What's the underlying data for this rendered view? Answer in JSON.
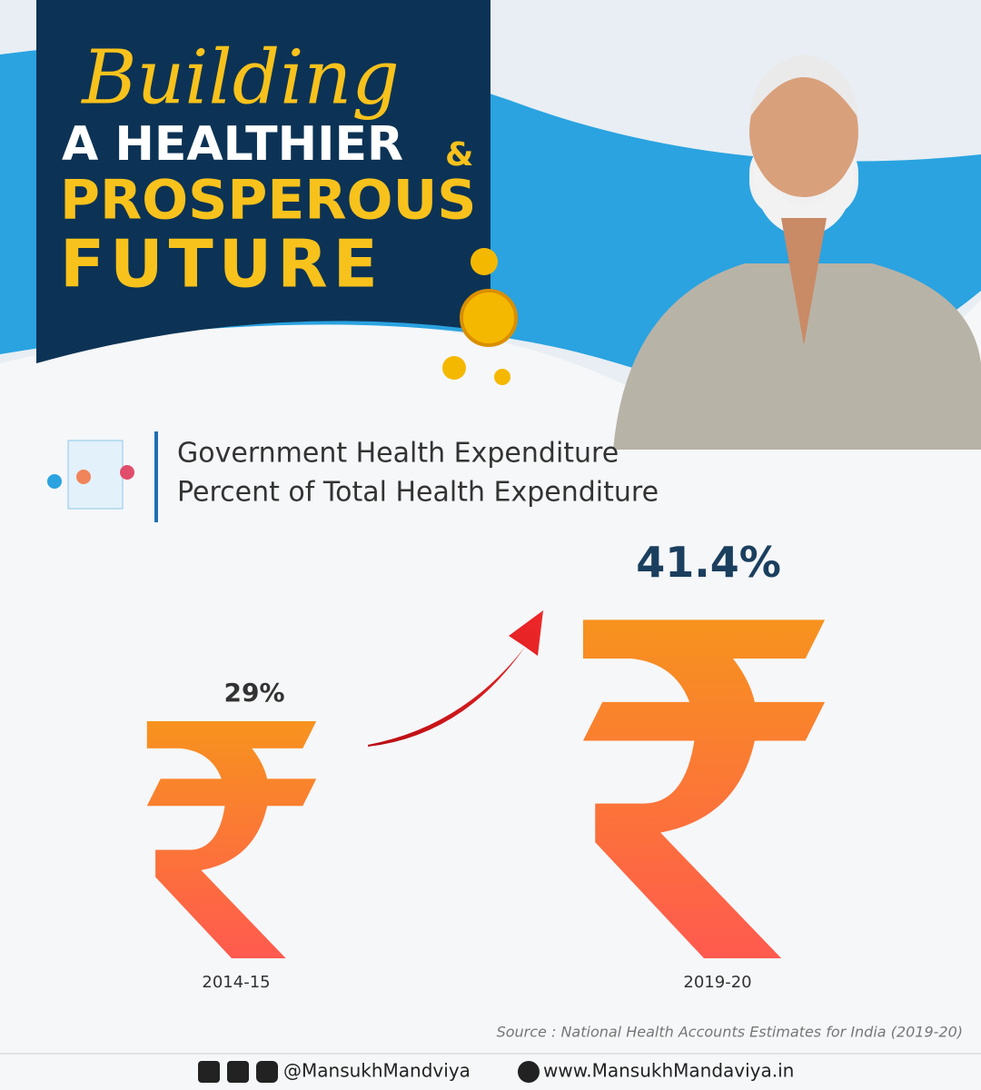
{
  "header": {
    "line1": "Building",
    "line2": "A HEALTHIER",
    "amp": "&",
    "line3": "PROSPEROUS",
    "line4": "FUTURE"
  },
  "chart_data": {
    "type": "pictogram",
    "title": "Government Health Expenditure",
    "subtitle": "Percent of Total Health Expenditure",
    "categories": [
      "2014-15",
      "2019-20"
    ],
    "values": [
      29,
      41.4
    ],
    "value_labels": [
      "29%",
      "41.4%"
    ],
    "color": "#f7931e",
    "source": "Source : National Health Accounts Estimates for India (2019-20)"
  },
  "footer": {
    "handle": "@MansukhMandviya",
    "website": "www.MansukhMandaviya.in"
  }
}
